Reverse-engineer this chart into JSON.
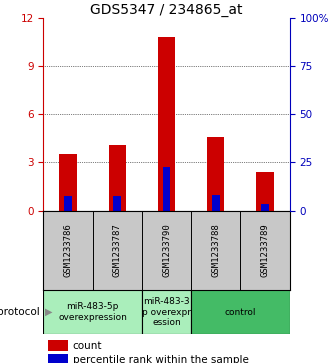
{
  "title": "GDS5347 / 234865_at",
  "samples": [
    "GSM1233786",
    "GSM1233787",
    "GSM1233790",
    "GSM1233788",
    "GSM1233789"
  ],
  "red_values": [
    3.5,
    4.1,
    10.8,
    4.6,
    2.4
  ],
  "blue_values": [
    0.9,
    0.9,
    2.7,
    1.0,
    0.4
  ],
  "ylim_left": [
    0,
    12
  ],
  "ylim_right": [
    0,
    100
  ],
  "yticks_left": [
    0,
    3,
    6,
    9,
    12
  ],
  "yticks_right": [
    0,
    25,
    50,
    75,
    100
  ],
  "ytick_labels_right": [
    "0",
    "25",
    "50",
    "75",
    "100%"
  ],
  "bar_color": "#CC0000",
  "blue_color": "#0000CC",
  "bar_width": 0.35,
  "bg_color_sample": "#C8C8C8",
  "left_axis_color": "#CC0000",
  "right_axis_color": "#0000BB",
  "title_fontsize": 10,
  "tick_fontsize": 7.5,
  "sample_fontsize": 6.5,
  "legend_fontsize": 7.5,
  "protocol_fontsize": 6.5,
  "proto_cells": [
    {
      "start": 0,
      "end": 2,
      "label": "miR-483-5p\noverexpression",
      "color": "#AAEEBB"
    },
    {
      "start": 2,
      "end": 3,
      "label": "miR-483-3\np overexpr\nession",
      "color": "#AAEEBB"
    },
    {
      "start": 3,
      "end": 5,
      "label": "control",
      "color": "#44BB66"
    }
  ]
}
